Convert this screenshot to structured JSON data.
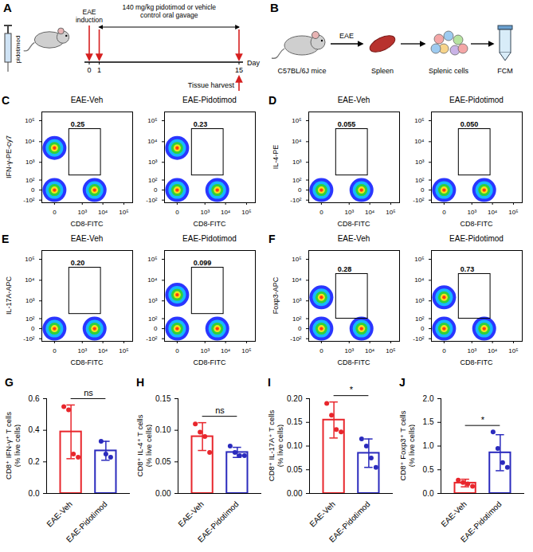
{
  "panel_A": {
    "letter": "A",
    "syringe_label": "pidotimod",
    "induction_label": "EAE induction",
    "treatment_label": "140 mg/kg pidotimod or vehicle control oral gavage",
    "harvest_label": "Tissue harvest",
    "axis_label": "Day",
    "days": [
      0,
      1,
      15
    ],
    "induction_day": 0,
    "treatment_days": [
      1,
      15
    ],
    "harvest_day": 15
  },
  "panel_B": {
    "letter": "B",
    "mouse_label": "C57BL/6J mice",
    "arrow_label": "EAE",
    "spleen_label": "Spleen",
    "cells_label": "Splenic cells",
    "fcm_label": "FCM"
  },
  "chart_data": [
    {
      "type": "flow_cytometry",
      "letter": "C",
      "x_label": "CD8-FITC",
      "y_label": "IFN-γ-PE-cy7",
      "categories": [
        "EAE-Veh",
        "EAE-Pidotimod"
      ],
      "values": [
        0.25,
        0.23
      ],
      "gates": [
        {
          "x": [
            200,
            8000
          ],
          "y": [
            200,
            40000
          ]
        },
        {
          "x": [
            200,
            8000
          ],
          "y": [
            200,
            40000
          ]
        }
      ],
      "populations": [
        [
          {
            "x": 0,
            "y": 0
          },
          {
            "x": 0,
            "y": 5000
          },
          {
            "x": 4000,
            "y": 0
          }
        ],
        [
          {
            "x": 0,
            "y": 0
          },
          {
            "x": 0,
            "y": 5000
          },
          {
            "x": 4000,
            "y": 0
          }
        ]
      ],
      "xlim": [
        -150,
        262144
      ],
      "ylim": [
        -150,
        262144
      ],
      "xticks": [
        0,
        {
          "value": 1000,
          "label": "10³"
        },
        {
          "value": 10000,
          "label": "10⁴"
        },
        {
          "value": 100000,
          "label": "10⁵"
        }
      ],
      "yticks": [
        {
          "value": -100,
          "label": "-10²"
        },
        0,
        {
          "value": 100,
          "label": "10²"
        },
        {
          "value": 1000,
          "label": "10³"
        },
        {
          "value": 10000,
          "label": "10⁴"
        },
        {
          "value": 100000,
          "label": "10⁵"
        }
      ]
    },
    {
      "type": "flow_cytometry",
      "letter": "D",
      "x_label": "CD8-FITC",
      "y_label": "IL-4-PE",
      "categories": [
        "EAE-Veh",
        "EAE-Pidotimod"
      ],
      "values": [
        0.055,
        0.05
      ],
      "value_labels": [
        "0.055",
        "0.050"
      ],
      "gates": [
        {
          "x": [
            200,
            8000
          ],
          "y": [
            200,
            40000
          ]
        },
        {
          "x": [
            200,
            8000
          ],
          "y": [
            200,
            40000
          ]
        }
      ],
      "populations": [
        [
          {
            "x": 0,
            "y": 0
          },
          {
            "x": 4000,
            "y": 0
          }
        ],
        [
          {
            "x": 0,
            "y": 0
          },
          {
            "x": 4000,
            "y": 0
          }
        ]
      ],
      "xlim": [
        -150,
        262144
      ],
      "ylim": [
        -150,
        262144
      ],
      "xticks": [
        0,
        {
          "value": 1000,
          "label": "10³"
        },
        {
          "value": 10000,
          "label": "10⁴"
        },
        {
          "value": 100000,
          "label": "10⁵"
        }
      ],
      "yticks": [
        {
          "value": -100,
          "label": "-10²"
        },
        0,
        {
          "value": 100,
          "label": "10²"
        },
        {
          "value": 1000,
          "label": "10³"
        },
        {
          "value": 10000,
          "label": "10⁴"
        },
        {
          "value": 100000,
          "label": "10⁵"
        }
      ]
    },
    {
      "type": "flow_cytometry",
      "letter": "E",
      "x_label": "CD8-FITC",
      "y_label": "IL-17A-APC",
      "categories": [
        "EAE-Veh",
        "EAE-Pidotimod"
      ],
      "values": [
        0.2,
        0.099
      ],
      "value_labels": [
        "0.20",
        "0.099"
      ],
      "gates": [
        {
          "x": [
            200,
            8000
          ],
          "y": [
            200,
            40000
          ]
        },
        {
          "x": [
            200,
            8000
          ],
          "y": [
            200,
            40000
          ]
        }
      ],
      "populations": [
        [
          {
            "x": 0,
            "y": 0
          },
          {
            "x": 4000,
            "y": 0
          }
        ],
        [
          {
            "x": 0,
            "y": 0
          },
          {
            "x": 4000,
            "y": 0
          },
          {
            "x": 0,
            "y": 2000
          }
        ]
      ],
      "xlim": [
        -150,
        262144
      ],
      "ylim": [
        -150,
        262144
      ],
      "xticks": [
        0,
        {
          "value": 1000,
          "label": "10³"
        },
        {
          "value": 10000,
          "label": "10⁴"
        },
        {
          "value": 100000,
          "label": "10⁵"
        }
      ],
      "yticks": [
        {
          "value": -100,
          "label": "-10²"
        },
        0,
        {
          "value": 100,
          "label": "10²"
        },
        {
          "value": 1000,
          "label": "10³"
        },
        {
          "value": 10000,
          "label": "10⁴"
        },
        {
          "value": 100000,
          "label": "10⁵"
        }
      ]
    },
    {
      "type": "flow_cytometry",
      "letter": "F",
      "x_label": "CD8-FITC",
      "y_label": "Foxp3-APC",
      "categories": [
        "EAE-Veh",
        "EAE-Pidotimod"
      ],
      "values": [
        0.28,
        0.73
      ],
      "gates": [
        {
          "x": [
            200,
            8000
          ],
          "y": [
            100,
            20000
          ]
        },
        {
          "x": [
            200,
            8000
          ],
          "y": [
            100,
            20000
          ]
        }
      ],
      "populations": [
        [
          {
            "x": 0,
            "y": 0
          },
          {
            "x": 4000,
            "y": 0
          },
          {
            "x": 0,
            "y": 1500
          }
        ],
        [
          {
            "x": 0,
            "y": 0
          },
          {
            "x": 4000,
            "y": 0
          },
          {
            "x": 0,
            "y": 1500
          }
        ]
      ],
      "xlim": [
        -150,
        262144
      ],
      "ylim": [
        -150,
        262144
      ],
      "xticks": [
        0,
        {
          "value": 1000,
          "label": "10³"
        },
        {
          "value": 10000,
          "label": "10⁴"
        },
        {
          "value": 100000,
          "label": "10⁵"
        }
      ],
      "yticks": [
        {
          "value": -100,
          "label": "-10²"
        },
        0,
        {
          "value": 100,
          "label": "10²"
        },
        {
          "value": 1000,
          "label": "10³"
        },
        {
          "value": 10000,
          "label": "10⁴"
        },
        {
          "value": 100000,
          "label": "10⁵"
        }
      ]
    },
    {
      "type": "bar",
      "letter": "G",
      "y_label": "CD8⁺ IFN-γ⁺ T cells (% live cells)",
      "categories": [
        "EAE-Veh",
        "EAE-Pidotimod"
      ],
      "values": [
        0.39,
        0.27
      ],
      "errors": [
        0.17,
        0.06
      ],
      "points": [
        [
          0.55,
          0.53,
          0.25,
          0.23
        ],
        [
          0.33,
          0.25,
          0.23
        ]
      ],
      "colors": [
        "#e8262c",
        "#2b2bbd"
      ],
      "ylim": [
        0,
        0.6
      ],
      "yticks": [
        {
          "value": 0,
          "label": "0.0"
        },
        0.2,
        0.4,
        0.6
      ],
      "significance": "ns"
    },
    {
      "type": "bar",
      "letter": "H",
      "y_label": "CD8⁺ IL-4⁺ T cells (% live cells)",
      "categories": [
        "EAE-Veh",
        "EAE-Pidotimod"
      ],
      "values": [
        0.09,
        0.065
      ],
      "errors": [
        0.022,
        0.008
      ],
      "points": [
        [
          0.11,
          0.097,
          0.09,
          0.065
        ],
        [
          0.075,
          0.065,
          0.06,
          0.06
        ]
      ],
      "colors": [
        "#e8262c",
        "#2b2bbd"
      ],
      "ylim": [
        0,
        0.15
      ],
      "yticks": [
        {
          "value": 0,
          "label": "0.00"
        },
        0.05,
        {
          "value": 0.1,
          "label": "0.10"
        },
        0.15
      ],
      "significance": "ns"
    },
    {
      "type": "bar",
      "letter": "I",
      "y_label": "CD8⁺ IL-17A⁺ T cells (% live cells)",
      "categories": [
        "EAE-Veh",
        "EAE-Pidotimod"
      ],
      "values": [
        0.155,
        0.085
      ],
      "errors": [
        0.038,
        0.03
      ],
      "points": [
        [
          0.19,
          0.165,
          0.135,
          0.13
        ],
        [
          0.115,
          0.1,
          0.075,
          0.055
        ]
      ],
      "colors": [
        "#e8262c",
        "#2b2bbd"
      ],
      "ylim": [
        0,
        0.2
      ],
      "yticks": [
        {
          "value": 0,
          "label": "0.00"
        },
        0.05,
        {
          "value": 0.1,
          "label": "0.10"
        },
        0.15,
        {
          "value": 0.2,
          "label": "0.20"
        }
      ],
      "significance": "*"
    },
    {
      "type": "bar",
      "letter": "J",
      "y_label": "CD8⁺ Foxp3⁺ T cells (% live cells)",
      "categories": [
        "EAE-Veh",
        "EAE-Pidotimod"
      ],
      "values": [
        0.22,
        0.86
      ],
      "errors": [
        0.08,
        0.38
      ],
      "points": [
        [
          0.28,
          0.23,
          0.2,
          0.15
        ],
        [
          1.3,
          0.95,
          0.65,
          0.55
        ]
      ],
      "colors": [
        "#e8262c",
        "#2b2bbd"
      ],
      "ylim": [
        0,
        2
      ],
      "yticks": [
        {
          "value": 0,
          "label": "0.0"
        },
        0.5,
        {
          "value": 1,
          "label": "1.0"
        },
        1.5,
        {
          "value": 2,
          "label": "2.0"
        }
      ],
      "significance": "*"
    }
  ]
}
